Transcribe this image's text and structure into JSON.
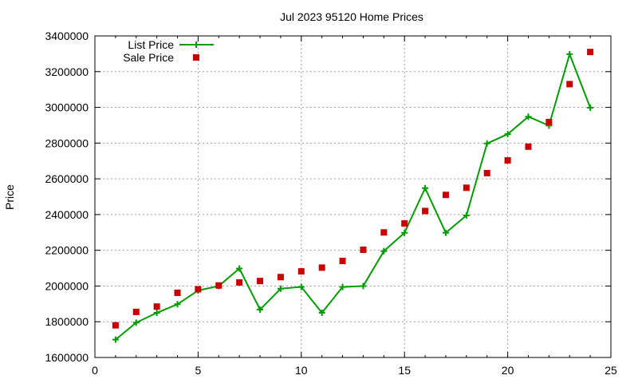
{
  "chart_data": {
    "type": "line",
    "title": "Jul 2023 95120 Home Prices",
    "xlabel": "",
    "ylabel": "Price",
    "xlim": [
      0,
      25
    ],
    "ylim": [
      1600000,
      3400000
    ],
    "x_ticks": [
      0,
      5,
      10,
      15,
      20,
      25
    ],
    "y_ticks": [
      1600000,
      1800000,
      2000000,
      2200000,
      2400000,
      2600000,
      2800000,
      3000000,
      3200000,
      3400000
    ],
    "grid": true,
    "legend_position": "top-left",
    "series": [
      {
        "name": "List Price",
        "style": "line with plus markers",
        "color": "#009e00",
        "x": [
          1,
          2,
          3,
          4,
          5,
          6,
          7,
          8,
          9,
          10,
          11,
          12,
          13,
          14,
          15,
          16,
          17,
          18,
          19,
          20,
          21,
          22,
          23,
          24
        ],
        "values": [
          1700000,
          1795000,
          1850000,
          1898000,
          1975000,
          2000000,
          2098000,
          1868000,
          1985000,
          1995000,
          1850000,
          1995000,
          2000000,
          2195000,
          2298000,
          2548000,
          2298000,
          2395000,
          2798000,
          2850000,
          2948000,
          2898000,
          3298000,
          2998000
        ]
      },
      {
        "name": "Sale Price",
        "style": "square markers",
        "color": "#cc0000",
        "x": [
          1,
          2,
          3,
          4,
          5,
          6,
          7,
          8,
          9,
          10,
          11,
          12,
          13,
          14,
          15,
          16,
          17,
          18,
          19,
          20,
          21,
          22,
          23,
          24
        ],
        "values": [
          1780000,
          1855000,
          1885000,
          1962000,
          1982000,
          2003000,
          2020000,
          2028000,
          2050000,
          2082000,
          2103000,
          2140000,
          2203000,
          2300000,
          2350000,
          2420000,
          2510000,
          2550000,
          2632000,
          2703000,
          2780000,
          2918000,
          3130000,
          3310000
        ]
      }
    ]
  }
}
